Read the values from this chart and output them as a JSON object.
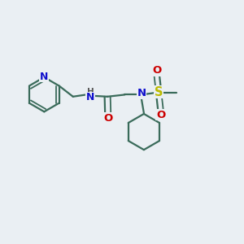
{
  "bg_color": "#eaeff3",
  "bond_color": "#3a6b5a",
  "N_color": "#1010cc",
  "O_color": "#cc0000",
  "S_color": "#bbbb00",
  "lw": 1.6,
  "lw_double": 1.3,
  "figsize": [
    3.0,
    3.0
  ],
  "dpi": 100,
  "xlim": [
    0,
    10
  ],
  "ylim": [
    0,
    10
  ]
}
